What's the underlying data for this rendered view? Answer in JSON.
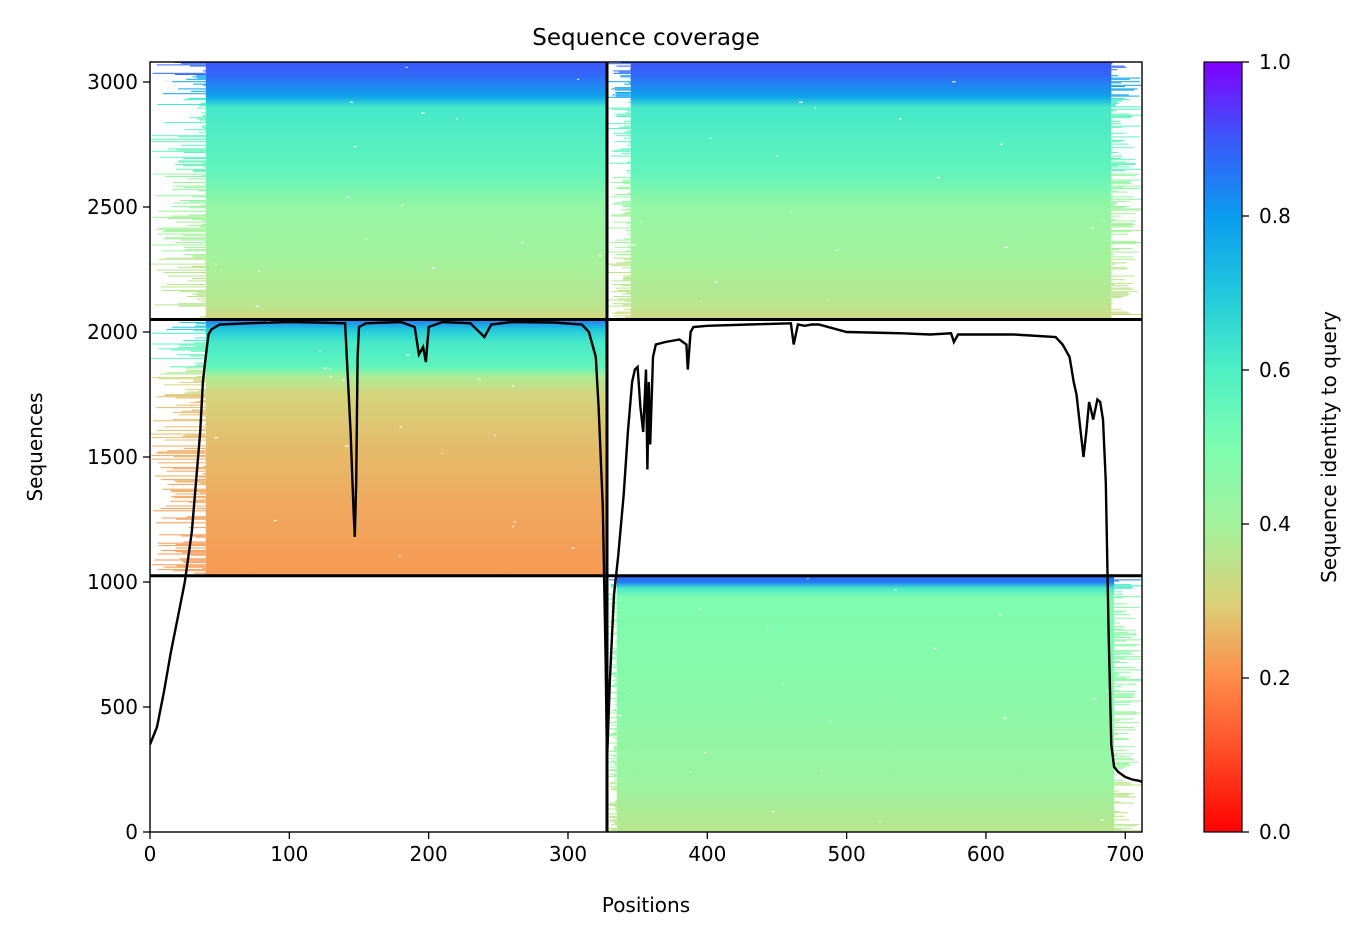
{
  "chart_data": {
    "type": "heatmap",
    "title": "Sequence coverage",
    "xlabel": "Positions",
    "ylabel": "Sequences",
    "xlim": [
      0,
      712
    ],
    "ylim": [
      0,
      3080
    ],
    "xticks": [
      0,
      100,
      200,
      300,
      400,
      500,
      600,
      700
    ],
    "yticks": [
      0,
      500,
      1000,
      1500,
      2000,
      2500,
      3000
    ],
    "grid": false,
    "colorbar": {
      "label": "Sequence identity to query",
      "range": [
        0,
        1
      ],
      "ticks": [
        "0.0",
        "0.2",
        "0.4",
        "0.6",
        "0.8",
        "1.0"
      ],
      "colormap": "rainbow_r"
    },
    "dividers": {
      "x": [
        328
      ],
      "y": [
        1025,
        2050
      ]
    },
    "blocks": [
      {
        "name": "domain-1-top",
        "x_range": [
          0,
          328
        ],
        "y_range": [
          2050,
          3080
        ],
        "align_start": 40,
        "align_end": 328,
        "identity_bands": [
          [
            2050,
            0.3
          ],
          [
            2100,
            0.36
          ],
          [
            2300,
            0.4
          ],
          [
            2500,
            0.44
          ],
          [
            2640,
            0.56
          ],
          [
            2900,
            0.62
          ],
          [
            2940,
            0.78
          ],
          [
            3030,
            0.88
          ],
          [
            3080,
            0.9
          ]
        ]
      },
      {
        "name": "domain-2-top",
        "x_range": [
          328,
          712
        ],
        "y_range": [
          2050,
          3080
        ],
        "align_start": 345,
        "align_end": 690,
        "identity_bands": [
          [
            2050,
            0.32
          ],
          [
            2100,
            0.36
          ],
          [
            2300,
            0.4
          ],
          [
            2500,
            0.44
          ],
          [
            2640,
            0.56
          ],
          [
            2900,
            0.62
          ],
          [
            2940,
            0.78
          ],
          [
            3030,
            0.88
          ],
          [
            3080,
            0.9
          ]
        ]
      },
      {
        "name": "domain-1-middle",
        "x_range": [
          0,
          328
        ],
        "y_range": [
          1025,
          2050
        ],
        "align_start": 40,
        "align_end": 328,
        "identity_bands": [
          [
            1025,
            0.22
          ],
          [
            1300,
            0.24
          ],
          [
            1550,
            0.27
          ],
          [
            1750,
            0.31
          ],
          [
            1820,
            0.38
          ],
          [
            1860,
            0.56
          ],
          [
            1960,
            0.62
          ],
          [
            2010,
            0.7
          ],
          [
            2050,
            0.85
          ]
        ]
      },
      {
        "name": "domain-2-bottom",
        "x_range": [
          328,
          712
        ],
        "y_range": [
          0,
          1025
        ],
        "align_start": 335,
        "align_end": 692,
        "identity_bands": [
          [
            0,
            0.36
          ],
          [
            200,
            0.42
          ],
          [
            500,
            0.46
          ],
          [
            940,
            0.5
          ],
          [
            975,
            0.62
          ],
          [
            1000,
            0.85
          ],
          [
            1025,
            0.88
          ]
        ]
      }
    ],
    "coverage_line": {
      "x": [
        0,
        5,
        10,
        15,
        20,
        25,
        30,
        33,
        36,
        38,
        40,
        42,
        44,
        47,
        50,
        70,
        100,
        120,
        140,
        144,
        146,
        147,
        148,
        149,
        150,
        155,
        180,
        190,
        193,
        196,
        198,
        200,
        210,
        230,
        240,
        245,
        260,
        290,
        310,
        315,
        320,
        322,
        325,
        327,
        328,
        330,
        333,
        336,
        340,
        343,
        346,
        348,
        350,
        352,
        354,
        356,
        357,
        358,
        359,
        361,
        363,
        370,
        380,
        385,
        386,
        388,
        390,
        400,
        430,
        460,
        462,
        465,
        470,
        475,
        480,
        500,
        540,
        560,
        575,
        577,
        580,
        590,
        620,
        650,
        655,
        660,
        663,
        665,
        668,
        670,
        672,
        674,
        675,
        677,
        680,
        682,
        684,
        686,
        688,
        690,
        692,
        695,
        700,
        705,
        710,
        712
      ],
      "y": [
        350,
        420,
        560,
        720,
        860,
        1000,
        1200,
        1400,
        1600,
        1800,
        1900,
        1990,
        2010,
        2020,
        2030,
        2035,
        2040,
        2038,
        2035,
        1600,
        1300,
        1180,
        1400,
        1900,
        2020,
        2035,
        2040,
        2020,
        1910,
        1940,
        1880,
        2020,
        2040,
        2035,
        1980,
        2030,
        2040,
        2038,
        2030,
        2000,
        1900,
        1700,
        1300,
        700,
        280,
        600,
        950,
        1100,
        1350,
        1600,
        1800,
        1850,
        1860,
        1700,
        1600,
        1850,
        1450,
        1800,
        1550,
        1900,
        1950,
        1960,
        1970,
        1950,
        1850,
        2000,
        2020,
        2025,
        2030,
        2035,
        1950,
        2030,
        2025,
        2030,
        2030,
        2000,
        1995,
        1990,
        1995,
        1960,
        1990,
        1990,
        1990,
        1980,
        1950,
        1900,
        1800,
        1750,
        1600,
        1500,
        1600,
        1720,
        1700,
        1650,
        1730,
        1720,
        1650,
        1400,
        800,
        350,
        260,
        240,
        220,
        210,
        205,
        200
      ]
    }
  }
}
